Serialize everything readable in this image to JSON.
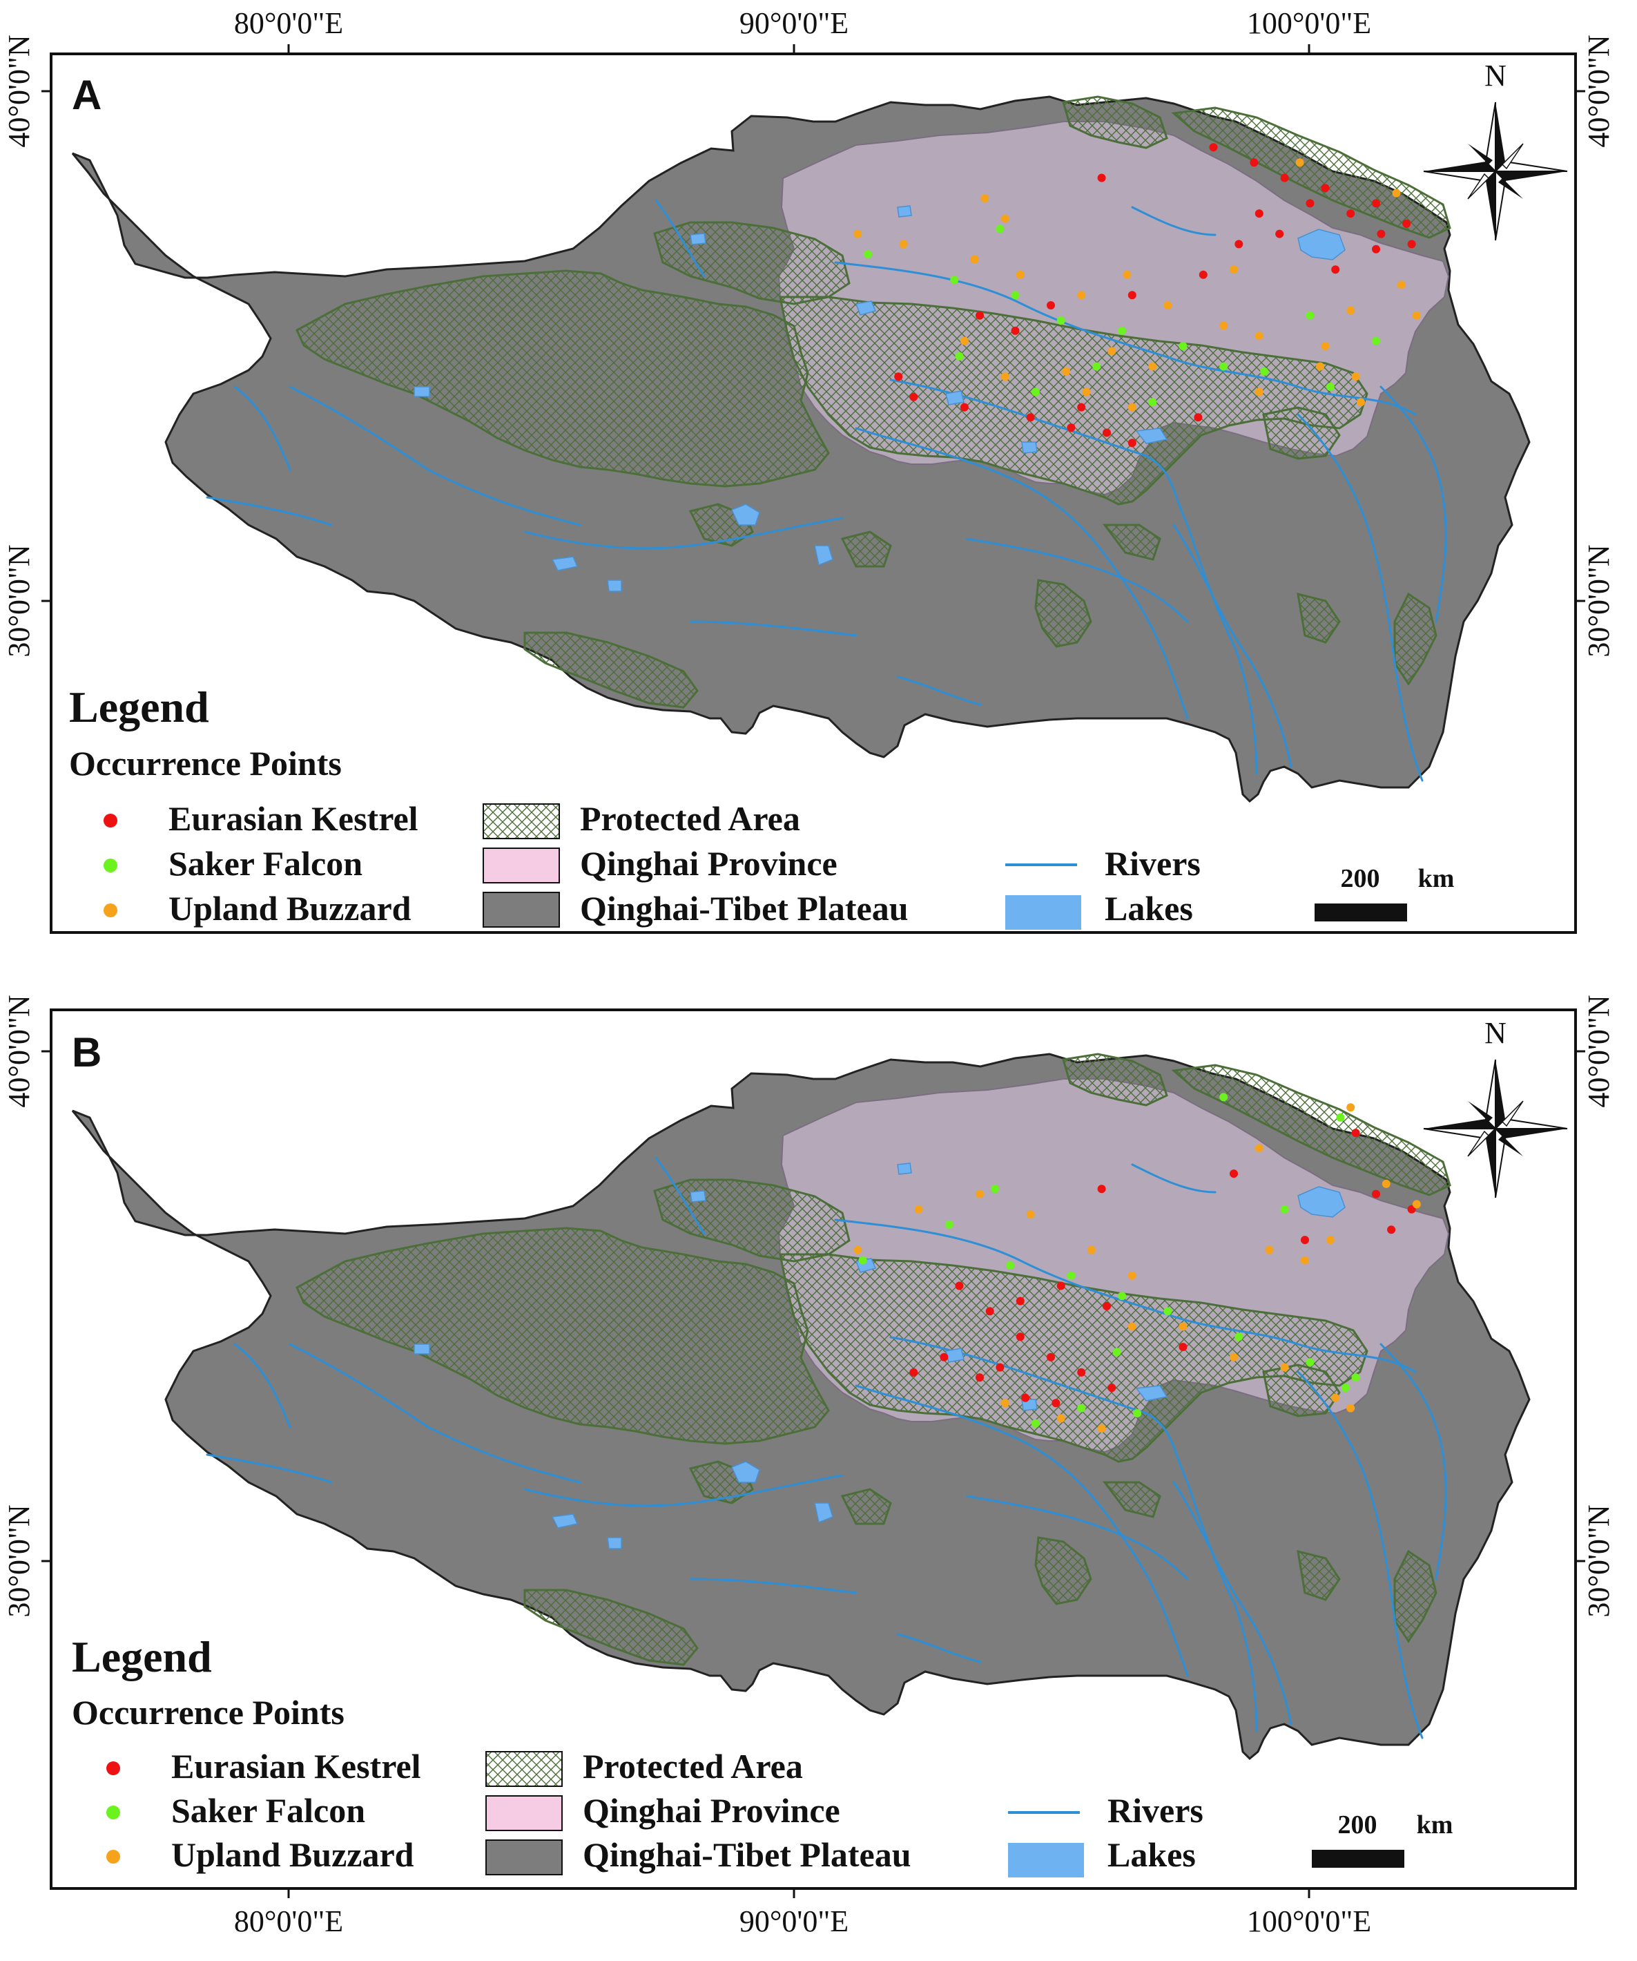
{
  "colors": {
    "plateau": "#7d7d7d",
    "qinghai": "#b4a8b9",
    "protected_hatch": "#4c6f3a",
    "rivers": "#2e8fd6",
    "lakes": "#6fb2f2",
    "kestrel": "#ee1111",
    "saker": "#6bf21f",
    "buzzard": "#f7a21b",
    "frame": "#111111"
  },
  "axes": {
    "longitude_ticks": [
      "80°0'0\"E",
      "90°0'0\"E",
      "100°0'0\"E"
    ],
    "latitude_ticks": [
      "40°0'0\"N",
      "30°0'0\"N"
    ]
  },
  "north_arrow_label": "N",
  "legend": {
    "title": "Legend",
    "occurrence_heading": "Occurrence Points",
    "species": [
      "Eurasian Kestrel",
      "Saker Falcon",
      "Upland Buzzard"
    ],
    "layers": [
      "Protected Area",
      "Qinghai Province",
      "Qinghai-Tibet Plateau"
    ],
    "hydro": [
      "Rivers",
      "Lakes"
    ],
    "scale_value": "200",
    "scale_unit": "km"
  },
  "panels": [
    {
      "label": "A",
      "occurrence_points": [
        {
          "species": "Eurasian Kestrel",
          "coords": [
            [
              96.0,
              38.3
            ],
            [
              98.2,
              38.9
            ],
            [
              99.0,
              38.6
            ],
            [
              99.6,
              38.3
            ],
            [
              100.1,
              37.8
            ],
            [
              100.9,
              37.6
            ],
            [
              101.4,
              37.8
            ],
            [
              102.0,
              37.4
            ],
            [
              101.5,
              37.2
            ],
            [
              99.5,
              37.2
            ],
            [
              98.7,
              37.0
            ],
            [
              98.0,
              36.4
            ],
            [
              96.6,
              36.0
            ],
            [
              95.0,
              35.8
            ],
            [
              94.3,
              35.3
            ],
            [
              93.6,
              35.6
            ],
            [
              92.0,
              34.4
            ],
            [
              92.3,
              34.0
            ],
            [
              93.3,
              33.8
            ],
            [
              94.6,
              33.6
            ],
            [
              95.4,
              33.4
            ],
            [
              96.1,
              33.3
            ],
            [
              96.6,
              33.1
            ],
            [
              95.6,
              33.8
            ],
            [
              97.9,
              33.6
            ],
            [
              100.6,
              36.5
            ],
            [
              101.4,
              36.9
            ],
            [
              102.1,
              37.0
            ],
            [
              99.1,
              37.6
            ],
            [
              100.4,
              38.1
            ]
          ]
        },
        {
          "species": "Saker Falcon",
          "coords": [
            [
              94.0,
              37.3
            ],
            [
              93.1,
              36.3
            ],
            [
              94.3,
              36.0
            ],
            [
              95.2,
              35.5
            ],
            [
              96.4,
              35.3
            ],
            [
              97.6,
              35.0
            ],
            [
              98.4,
              34.6
            ],
            [
              99.2,
              34.5
            ],
            [
              100.5,
              34.2
            ],
            [
              95.9,
              34.6
            ],
            [
              94.7,
              34.1
            ],
            [
              93.2,
              34.8
            ],
            [
              91.4,
              36.8
            ],
            [
              100.1,
              35.6
            ],
            [
              101.4,
              35.1
            ],
            [
              97.0,
              33.9
            ]
          ]
        },
        {
          "species": "Upland Buzzard",
          "coords": [
            [
              91.2,
              37.2
            ],
            [
              92.1,
              37.0
            ],
            [
              93.7,
              37.9
            ],
            [
              94.1,
              37.5
            ],
            [
              93.5,
              36.7
            ],
            [
              94.4,
              36.4
            ],
            [
              95.6,
              36.0
            ],
            [
              96.5,
              36.4
            ],
            [
              97.3,
              35.8
            ],
            [
              98.4,
              35.4
            ],
            [
              99.1,
              35.2
            ],
            [
              100.4,
              35.0
            ],
            [
              101.0,
              34.4
            ],
            [
              101.1,
              33.9
            ],
            [
              100.3,
              34.6
            ],
            [
              99.1,
              34.1
            ],
            [
              97.0,
              34.6
            ],
            [
              96.2,
              34.9
            ],
            [
              95.3,
              34.5
            ],
            [
              94.1,
              34.4
            ],
            [
              93.3,
              35.1
            ],
            [
              96.6,
              33.8
            ],
            [
              101.8,
              38.0
            ],
            [
              99.9,
              38.6
            ],
            [
              101.9,
              36.2
            ],
            [
              102.2,
              35.6
            ],
            [
              98.6,
              36.5
            ],
            [
              95.7,
              34.1
            ],
            [
              100.9,
              35.7
            ]
          ]
        }
      ]
    },
    {
      "label": "B",
      "occurrence_points": [
        {
          "species": "Eurasian Kestrel",
          "coords": [
            [
              96.0,
              37.3
            ],
            [
              98.6,
              37.6
            ],
            [
              101.0,
              38.4
            ],
            [
              101.4,
              37.2
            ],
            [
              102.1,
              36.9
            ],
            [
              101.7,
              36.5
            ],
            [
              100.0,
              36.3
            ],
            [
              93.2,
              35.4
            ],
            [
              93.8,
              34.9
            ],
            [
              94.4,
              34.4
            ],
            [
              95.0,
              34.0
            ],
            [
              95.6,
              33.7
            ],
            [
              96.2,
              33.4
            ],
            [
              95.1,
              33.1
            ],
            [
              94.5,
              33.2
            ],
            [
              93.6,
              33.6
            ],
            [
              92.9,
              34.0
            ],
            [
              92.3,
              33.7
            ],
            [
              97.6,
              34.2
            ],
            [
              94.4,
              35.1
            ],
            [
              95.2,
              35.4
            ],
            [
              96.1,
              35.0
            ],
            [
              94.0,
              33.8
            ]
          ]
        },
        {
          "species": "Saker Falcon",
          "coords": [
            [
              93.9,
              37.3
            ],
            [
              93.0,
              36.6
            ],
            [
              94.2,
              35.8
            ],
            [
              95.4,
              35.6
            ],
            [
              96.4,
              35.2
            ],
            [
              97.3,
              34.9
            ],
            [
              98.7,
              34.4
            ],
            [
              100.1,
              33.9
            ],
            [
              100.8,
              33.4
            ],
            [
              101.0,
              33.6
            ],
            [
              95.6,
              33.0
            ],
            [
              96.7,
              32.9
            ],
            [
              94.7,
              32.7
            ],
            [
              91.3,
              35.9
            ],
            [
              98.4,
              39.1
            ],
            [
              100.7,
              38.7
            ],
            [
              99.6,
              36.9
            ],
            [
              96.3,
              34.1
            ]
          ]
        },
        {
          "species": "Upland Buzzard",
          "coords": [
            [
              91.2,
              36.1
            ],
            [
              92.4,
              36.9
            ],
            [
              93.6,
              37.2
            ],
            [
              94.6,
              36.8
            ],
            [
              95.8,
              36.1
            ],
            [
              96.6,
              35.6
            ],
            [
              97.6,
              34.6
            ],
            [
              98.6,
              34.0
            ],
            [
              99.6,
              33.8
            ],
            [
              100.6,
              33.2
            ],
            [
              100.9,
              33.0
            ],
            [
              94.1,
              33.1
            ],
            [
              95.2,
              32.8
            ],
            [
              96.0,
              32.6
            ],
            [
              99.3,
              36.1
            ],
            [
              100.0,
              35.9
            ],
            [
              100.5,
              36.3
            ],
            [
              101.6,
              37.4
            ],
            [
              102.2,
              37.0
            ],
            [
              99.1,
              38.1
            ],
            [
              100.9,
              38.9
            ],
            [
              96.6,
              34.6
            ]
          ]
        }
      ]
    }
  ]
}
